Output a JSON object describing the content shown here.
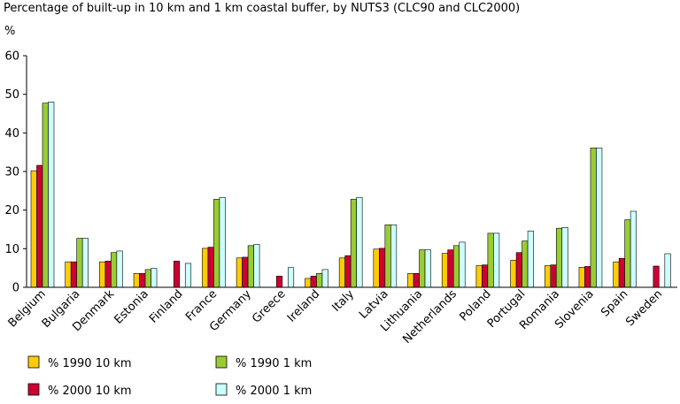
{
  "chart_data": {
    "type": "bar",
    "title": "Percentage of built-up in 10 km and 1 km coastal buffer, by NUTS3 (CLC90 and CLC2000)",
    "ylabel": "%",
    "xlabel": "",
    "ylim": [
      0,
      60
    ],
    "yticks": [
      0,
      10,
      20,
      30,
      40,
      50,
      60
    ],
    "grid": false,
    "legend_position": "bottom",
    "categories": [
      "Belgium",
      "Bulgaria",
      "Denmark",
      "Estonia",
      "Finland",
      "France",
      "Germany",
      "Greece",
      "Ireland",
      "Italy",
      "Latvia",
      "Lithuania",
      "Netherlands",
      "Poland",
      "Portugal",
      "Romania",
      "Slovenia",
      "Spain",
      "Sweden"
    ],
    "series": [
      {
        "name": "% 1990 10 km",
        "color": "#ffcc00",
        "values": [
          30.2,
          6.6,
          6.6,
          3.6,
          null,
          10.1,
          7.6,
          null,
          2.3,
          7.6,
          9.9,
          3.6,
          8.8,
          5.6,
          7.0,
          5.6,
          5.2,
          6.6,
          null
        ]
      },
      {
        "name": "% 2000 10 km",
        "color": "#cc0033",
        "values": [
          31.6,
          6.6,
          6.8,
          3.6,
          6.8,
          10.4,
          7.8,
          2.9,
          2.9,
          8.2,
          10.1,
          3.6,
          9.7,
          5.8,
          9.0,
          5.8,
          5.4,
          7.5,
          5.5
        ]
      },
      {
        "name": "% 1990 1 km",
        "color": "#99cc33",
        "values": [
          47.7,
          12.7,
          9.0,
          4.6,
          null,
          22.8,
          10.8,
          null,
          3.6,
          22.8,
          16.2,
          9.7,
          10.8,
          14.0,
          12.0,
          15.3,
          36.1,
          17.5,
          null
        ]
      },
      {
        "name": "% 2000 1 km",
        "color": "#ccffff",
        "values": [
          48.0,
          12.7,
          9.4,
          4.9,
          6.2,
          23.3,
          11.1,
          5.1,
          4.6,
          23.3,
          16.2,
          9.7,
          11.7,
          14.0,
          14.6,
          15.5,
          36.1,
          19.7,
          8.7
        ]
      }
    ]
  }
}
